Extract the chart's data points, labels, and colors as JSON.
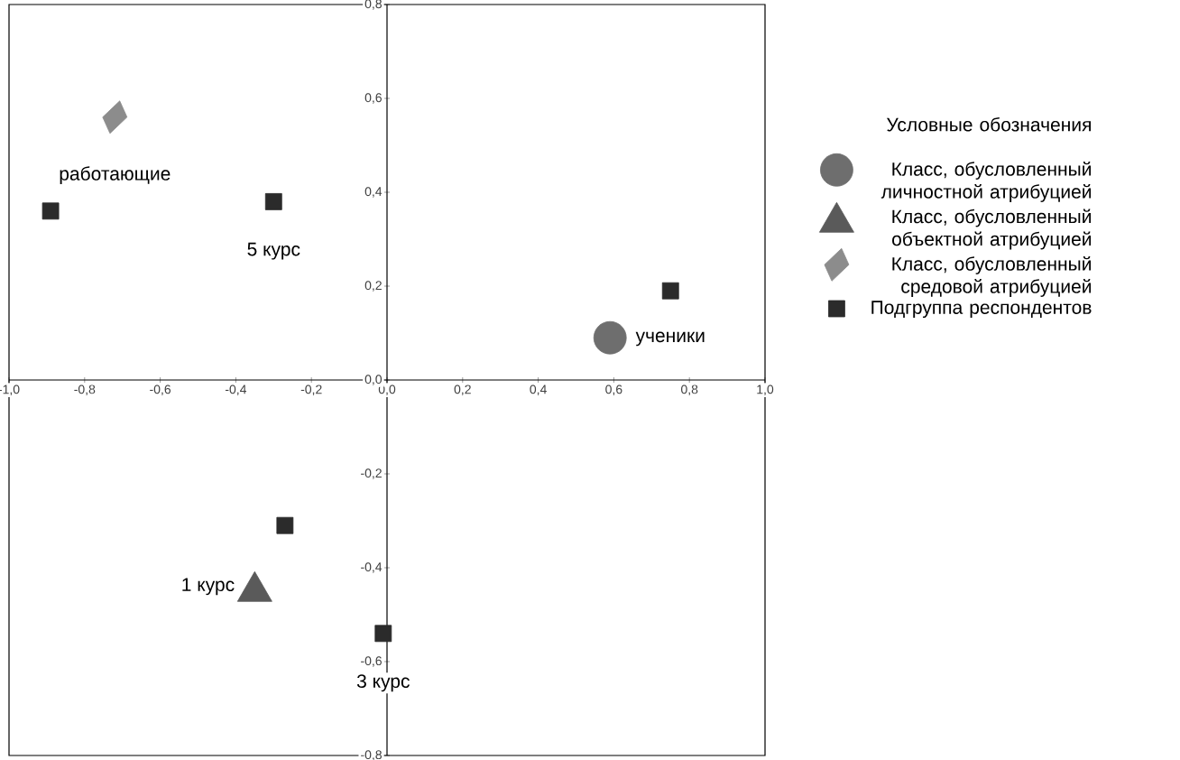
{
  "chart_data": {
    "type": "scatter",
    "legend_title": "Условные обозначения",
    "legend": "right",
    "xlim": [
      -1.0,
      1.0
    ],
    "ylim": [
      -0.8,
      0.8
    ],
    "xticks": [
      {
        "value": -1.0,
        "label": "-1,0"
      },
      {
        "value": -0.8,
        "label": "-0,8"
      },
      {
        "value": -0.6,
        "label": "-0,6"
      },
      {
        "value": -0.4,
        "label": "-0,4"
      },
      {
        "value": -0.2,
        "label": "-0,2"
      },
      {
        "value": 0,
        "label": "0,0"
      },
      {
        "value": 0.2,
        "label": "0,2"
      },
      {
        "value": 0.4,
        "label": "0,4"
      },
      {
        "value": 0.6,
        "label": "0,6"
      },
      {
        "value": 0.8,
        "label": "0,8"
      },
      {
        "value": 1.0,
        "label": "1,0"
      }
    ],
    "yticks": [
      {
        "value": -0.8,
        "label": "-0,8"
      },
      {
        "value": -0.6,
        "label": "-0,6"
      },
      {
        "value": -0.4,
        "label": "-0,4"
      },
      {
        "value": -0.2,
        "label": "-0,2"
      },
      {
        "value": 0,
        "label": "0,0"
      },
      {
        "value": 0.2,
        "label": "0,2"
      },
      {
        "value": 0.4,
        "label": "0,4"
      },
      {
        "value": 0.6,
        "label": "0,6"
      },
      {
        "value": 0.8,
        "label": "0,8"
      }
    ],
    "series": [
      {
        "name": "Класс, обусловленный личностной атрибуцией",
        "color": "#6e6e6e",
        "marker": "circle",
        "x": [
          0.59
        ],
        "values": [
          0.09
        ]
      },
      {
        "name": "Класс, обусловленный объектной атрибуцией",
        "color": "#5a5a5a",
        "marker": "triangle",
        "x": [
          -0.35
        ],
        "values": [
          -0.44
        ]
      },
      {
        "name": "Класс, обусловленный средовой атрибуцией",
        "color": "#8c8c8c",
        "marker": "diamond",
        "x": [
          -0.72
        ],
        "values": [
          0.56
        ]
      },
      {
        "name": "Подгруппа респондентов",
        "color": "#2b2b2b",
        "marker": "square",
        "x": [
          -0.89,
          -0.3,
          0.75,
          -0.27,
          -0.01
        ],
        "values": [
          0.36,
          0.38,
          0.19,
          -0.31,
          -0.54
        ]
      }
    ],
    "annotations": [
      {
        "text": "работающие",
        "x": -0.72,
        "y": 0.56
      },
      {
        "text": "5 курс",
        "x": -0.3,
        "y": 0.38
      },
      {
        "text": "ученики",
        "x": 0.75,
        "y": 0.19
      },
      {
        "text": "1 курс",
        "x": -0.35,
        "y": -0.44
      },
      {
        "text": "3 курс",
        "x": -0.01,
        "y": -0.54
      }
    ]
  }
}
